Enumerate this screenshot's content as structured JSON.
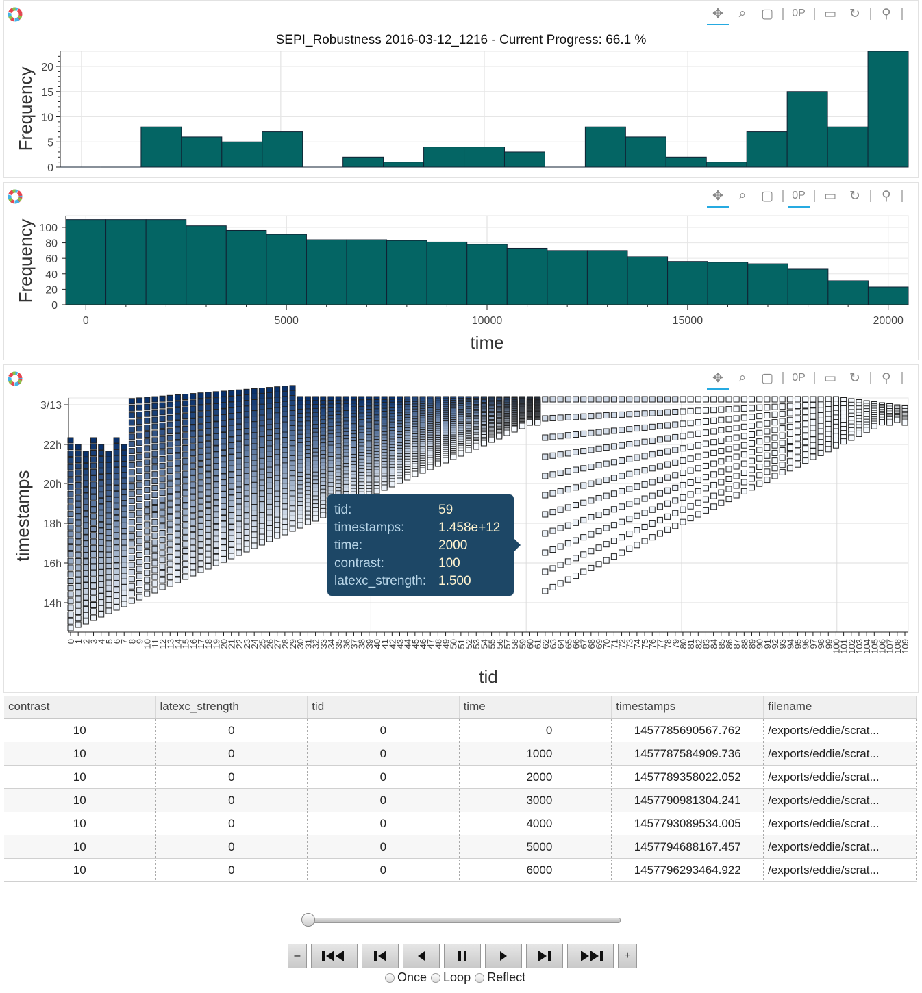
{
  "toolbar": {
    "icons": [
      "pan-icon",
      "box-zoom-icon",
      "resize-icon",
      "wheel-zoom-icon",
      "save-icon",
      "reset-icon",
      "hover-icon"
    ]
  },
  "chart_data": [
    {
      "type": "bar",
      "title": "SEPI_Robustness 2016-03-12_1216 - Current Progress: 66.1 %",
      "ylabel": "Frequency",
      "ylim": [
        0,
        23
      ],
      "yticks": [
        0,
        5,
        10,
        15,
        20
      ],
      "bar_color": "#046564",
      "values": [
        0,
        0,
        8,
        6,
        5,
        7,
        0,
        2,
        1,
        4,
        4,
        3,
        0,
        8,
        6,
        2,
        1,
        7,
        15,
        8,
        23
      ]
    },
    {
      "type": "bar",
      "xlabel": "time",
      "ylabel": "Frequency",
      "xlim": [
        -500,
        20500
      ],
      "ylim": [
        0,
        115
      ],
      "xticks": [
        0,
        5000,
        10000,
        15000,
        20000
      ],
      "yticks": [
        0,
        20,
        40,
        60,
        80,
        100
      ],
      "bar_color": "#046564",
      "values": [
        110,
        110,
        110,
        102,
        96,
        91,
        84,
        84,
        83,
        81,
        78,
        73,
        70,
        70,
        62,
        56,
        55,
        53,
        46,
        31,
        23
      ]
    },
    {
      "type": "scatter",
      "xlabel": "tid",
      "ylabel": "timestamps",
      "yticks": [
        "3/13",
        "22h",
        "20h",
        "18h",
        "16h",
        "14h"
      ],
      "xlim": [
        0,
        109
      ]
    }
  ],
  "tooltip": {
    "rows": [
      {
        "k": "tid:",
        "v": "59"
      },
      {
        "k": "timestamps:",
        "v": "1.458e+12"
      },
      {
        "k": "time:",
        "v": "2000"
      },
      {
        "k": "contrast:",
        "v": "100"
      },
      {
        "k": "latexc_strength:",
        "v": "1.500"
      }
    ]
  },
  "table": {
    "columns": [
      "contrast",
      "latexc_strength",
      "tid",
      "time",
      "timestamps",
      "filename"
    ],
    "rows": [
      [
        "10",
        "0",
        "0",
        "0",
        "1457785690567.762",
        "/exports/eddie/scrat..."
      ],
      [
        "10",
        "0",
        "0",
        "1000",
        "1457787584909.736",
        "/exports/eddie/scrat..."
      ],
      [
        "10",
        "0",
        "0",
        "2000",
        "1457789358022.052",
        "/exports/eddie/scrat..."
      ],
      [
        "10",
        "0",
        "0",
        "3000",
        "1457790981304.241",
        "/exports/eddie/scrat..."
      ],
      [
        "10",
        "0",
        "0",
        "4000",
        "1457793089534.005",
        "/exports/eddie/scrat..."
      ],
      [
        "10",
        "0",
        "0",
        "5000",
        "1457794688167.457",
        "/exports/eddie/scrat..."
      ],
      [
        "10",
        "0",
        "0",
        "6000",
        "1457796293464.922",
        "/exports/eddie/scrat..."
      ]
    ]
  },
  "player": {
    "minus": "–",
    "plus": "+",
    "buttons": [
      "first-button",
      "previous-button",
      "reverse-button",
      "pause-button",
      "play-button",
      "next-button",
      "last-button"
    ],
    "modes": [
      "Once",
      "Loop",
      "Reflect"
    ],
    "slider_value": 0
  }
}
